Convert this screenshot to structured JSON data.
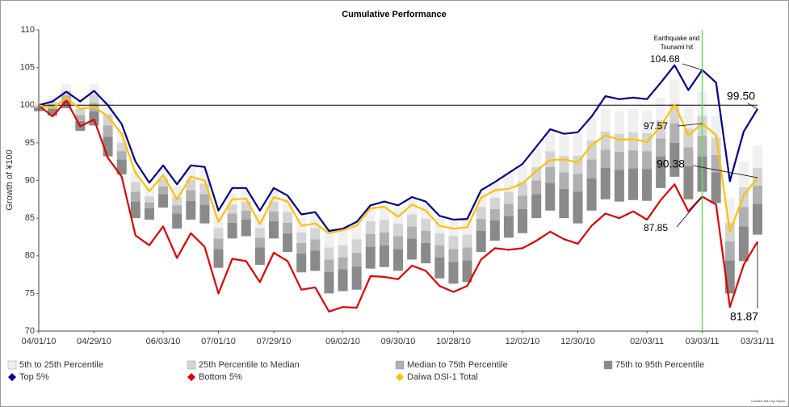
{
  "chart_data": {
    "type": "combo",
    "title": "Cumulative Performance",
    "y_label": "Growth of ¥100",
    "categories": [
      "04/01/10",
      null,
      null,
      null,
      "04/29/10",
      null,
      null,
      null,
      null,
      "06/03/10",
      null,
      null,
      null,
      "07/01/10",
      null,
      null,
      null,
      "07/29/10",
      null,
      null,
      null,
      null,
      "09/02/10",
      null,
      null,
      null,
      "09/30/10",
      null,
      null,
      null,
      "10/28/10",
      null,
      null,
      null,
      null,
      "12/02/10",
      null,
      null,
      null,
      "12/30/10",
      null,
      null,
      null,
      null,
      "02/03/11",
      null,
      null,
      null,
      "03/03/11",
      null,
      null,
      null,
      "03/31/11"
    ],
    "ylim": [
      70,
      110
    ],
    "yticks": [
      70,
      75,
      80,
      85,
      90,
      95,
      100,
      105,
      110
    ],
    "reference_line": 100,
    "event_x": "03/03/11",
    "event_label": [
      "Earthquake and",
      "Tsunami hit"
    ],
    "floor": [
      99.2,
      98.6,
      99.6,
      96.6,
      97.3,
      93.2,
      90.8,
      85,
      84.8,
      86.4,
      83.6,
      84.8,
      84.3,
      78.4,
      82.3,
      82.6,
      78.8,
      82.3,
      80.5,
      77.8,
      78,
      75,
      75.3,
      75.5,
      78.3,
      78.5,
      78,
      79.5,
      79,
      77,
      76.3,
      76.5,
      80.5,
      82,
      82.4,
      83,
      85,
      86,
      85,
      84.3,
      86,
      87.5,
      87.2,
      87.4,
      87.3,
      89,
      90.5,
      87.5,
      88.5,
      87,
      75,
      79.3,
      82.8
    ],
    "series": [
      {
        "name": "5th to 25th Percentile",
        "color": "#f0f0f0",
        "values": [
          0.3,
          0.7,
          0.9,
          0.9,
          1.4,
          1.8,
          1.5,
          1.5,
          1.1,
          1.4,
          1.5,
          1.7,
          1.9,
          1.9,
          1.5,
          1.6,
          1.8,
          1.8,
          1.8,
          1.9,
          1.9,
          2.1,
          2.1,
          2.2,
          2.1,
          2,
          2.1,
          2,
          1.9,
          2,
          2,
          2,
          1.9,
          1.9,
          2.1,
          2.2,
          2.4,
          2.6,
          2.7,
          2.9,
          3,
          3,
          3,
          3.1,
          3,
          3,
          3.2,
          3.1,
          3.2,
          2.9,
          3.3,
          3.4,
          2.9
        ]
      },
      {
        "name": "25th Percentile to Median",
        "color": "#d4d4d4",
        "values": [
          0.2,
          0.5,
          0.6,
          0.8,
          1.1,
          1.5,
          1.1,
          1.3,
          0.8,
          1,
          1.1,
          1.4,
          1.4,
          1.4,
          1.2,
          1.2,
          1.3,
          1.3,
          1.4,
          1.4,
          1.5,
          1.6,
          1.6,
          1.8,
          1.7,
          1.7,
          1.7,
          1.6,
          1.6,
          1.6,
          1.7,
          1.7,
          1.6,
          1.5,
          1.6,
          1.8,
          1.8,
          2.1,
          2.2,
          2.4,
          2.5,
          2.4,
          2.4,
          2.4,
          2.4,
          2.4,
          2.6,
          2.5,
          2.7,
          2.3,
          2.5,
          2.6,
          2.4
        ]
      },
      {
        "name": "Median to 75th Percentile",
        "color": "#b0b0b0",
        "values": [
          0.2,
          0.5,
          0.6,
          0.8,
          1.1,
          1.5,
          1.1,
          1.3,
          0.8,
          1,
          1.1,
          1.4,
          1.4,
          1.4,
          1.2,
          1.2,
          1.3,
          1.3,
          1.4,
          1.4,
          1.5,
          1.6,
          1.6,
          1.8,
          1.7,
          1.7,
          1.7,
          1.6,
          1.6,
          1.6,
          1.7,
          1.7,
          1.6,
          1.5,
          1.6,
          1.8,
          1.8,
          2.1,
          2.2,
          2.4,
          2.5,
          2.4,
          2.4,
          2.4,
          2.4,
          2.4,
          2.6,
          2.5,
          2.7,
          2.3,
          2.5,
          2.6,
          2.4
        ]
      },
      {
        "name": "75th to 95th Percentile",
        "color": "#8a8a8a",
        "values": [
          0.4,
          0.9,
          1.1,
          1.3,
          1.9,
          2.6,
          2,
          2.2,
          1.5,
          1.8,
          2,
          2.5,
          2.5,
          2.5,
          2.1,
          2.2,
          2.3,
          2.3,
          2.5,
          2.5,
          2.7,
          2.9,
          2.9,
          3.1,
          2.9,
          2.9,
          2.9,
          2.8,
          2.7,
          2.8,
          2.9,
          2.9,
          2.8,
          2.7,
          2.9,
          3.2,
          3.2,
          3.7,
          3.9,
          4.2,
          4.3,
          4.2,
          4.2,
          4.2,
          4.2,
          4.2,
          4.5,
          4.4,
          4.7,
          4.1,
          4.4,
          4.6,
          4.1
        ]
      },
      {
        "name": "Top 5%",
        "color": "#00008b",
        "values": [
          100,
          100.5,
          101.8,
          100.5,
          101.9,
          100,
          97.5,
          92.5,
          89.7,
          92,
          89.5,
          92,
          91.8,
          86,
          89,
          89,
          86,
          89,
          88,
          85.5,
          85.8,
          83.3,
          83.6,
          84.5,
          86.7,
          87.2,
          86.7,
          87.8,
          87.2,
          85.3,
          84.8,
          84.9,
          88.7,
          89.8,
          91,
          92.2,
          94.5,
          96.8,
          96.2,
          96.4,
          98.5,
          101.2,
          100.8,
          101,
          100.8,
          103,
          105.3,
          102,
          104.68,
          103,
          89.9,
          96.5,
          99.5
        ]
      },
      {
        "name": "Bottom 5%",
        "color": "#e00000",
        "values": [
          100,
          98.5,
          100.6,
          97.2,
          98.1,
          93,
          90.5,
          82.7,
          81.4,
          83.9,
          79.7,
          83,
          81.2,
          75,
          79.6,
          79.3,
          76.5,
          80.4,
          79.3,
          75.5,
          75.8,
          72.6,
          73.2,
          73.1,
          77.3,
          77.2,
          76.9,
          78.7,
          78,
          76,
          75.2,
          76,
          79.5,
          81,
          80.8,
          81,
          82,
          83.2,
          82.2,
          81.6,
          84,
          85.6,
          85,
          85.9,
          84.8,
          87.4,
          89.5,
          85.9,
          87.85,
          86.8,
          73.2,
          78.8,
          81.87
        ]
      },
      {
        "name": "Daiwa DSI-1 Total",
        "color": "#ffc000",
        "values": [
          100,
          99.6,
          101,
          99.5,
          99.8,
          98.5,
          96.2,
          91,
          88.6,
          90.7,
          87.5,
          90.5,
          90,
          84.5,
          87.5,
          87.6,
          84.2,
          87.8,
          87.2,
          84,
          84.3,
          83,
          83.4,
          84,
          86.3,
          86.5,
          85.2,
          86.8,
          86,
          84,
          83.6,
          83.8,
          87.7,
          88.7,
          88.9,
          89.6,
          91.3,
          92.7,
          92.8,
          92.4,
          94.7,
          96,
          95.4,
          95.5,
          95.1,
          97.2,
          100.1,
          96,
          97.57,
          96,
          83.2,
          88,
          90.38
        ]
      }
    ],
    "annotations": [
      {
        "text": "104.68"
      },
      {
        "text": "97.57"
      },
      {
        "text": "99.50"
      },
      {
        "text": "90.38"
      },
      {
        "text": "87.85"
      },
      {
        "text": "81.87"
      }
    ],
    "footer": "Created with mpi Stylus"
  }
}
